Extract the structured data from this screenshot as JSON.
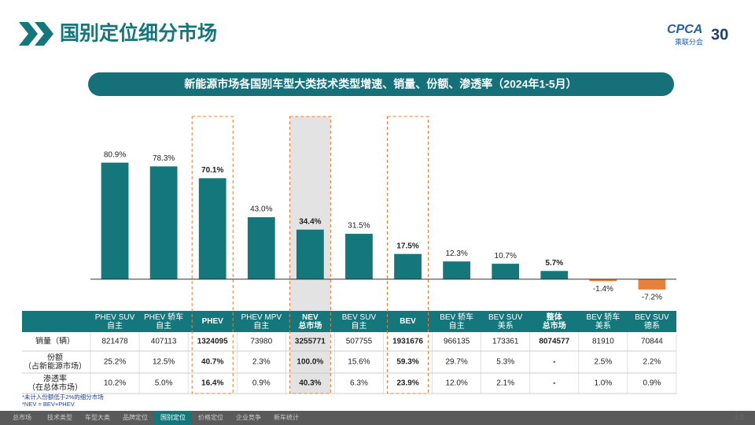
{
  "header": {
    "title": "国别定位细分市场",
    "logo": "CPCA",
    "logo_sub": "乘联分会",
    "anniversary": "30"
  },
  "chart_data": {
    "type": "bar",
    "title": "新能源市场各国别车型大类技术类型增速、销量、份额、渗透率（2024年1-5月）",
    "categories": [
      "PHEV SUV\n自主",
      "PHEV 轿车\n自主",
      "PHEV",
      "PHEV MPV\n自主",
      "NEV\n总市场",
      "BEV SUV\n自主",
      "BEV",
      "BEV 轿车\n自主",
      "BEV SUV\n美系",
      "整体\n总市场",
      "BEV 轿车\n美系",
      "BEV SUV\n德系"
    ],
    "values": [
      80.9,
      78.3,
      70.1,
      43.0,
      34.4,
      31.5,
      17.5,
      12.3,
      10.7,
      5.7,
      -1.4,
      -7.2
    ],
    "value_labels": [
      "80.9%",
      "78.3%",
      "70.1%",
      "43.0%",
      "34.4%",
      "31.5%",
      "17.5%",
      "12.3%",
      "10.7%",
      "5.7%",
      "-1.4%",
      "-7.2%"
    ],
    "colors": [
      "#14777c",
      "#14777c",
      "#14777c",
      "#14777c",
      "#14777c",
      "#14777c",
      "#14777c",
      "#14777c",
      "#14777c",
      "#14777c",
      "#e8803a",
      "#e8803a"
    ],
    "ylim": [
      -10,
      90
    ]
  },
  "table": {
    "rows": [
      {
        "label": "销量（辆）",
        "cells": [
          "821478",
          "407113",
          "1324095",
          "73980",
          "3255771",
          "507755",
          "1931676",
          "966135",
          "173361",
          "8074577",
          "81910",
          "70844"
        ]
      },
      {
        "label": "份额\n（占新能源市场）",
        "cells": [
          "25.2%",
          "12.5%",
          "40.7%",
          "2.3%",
          "100.0%",
          "15.6%",
          "59.3%",
          "29.7%",
          "5.3%",
          "-",
          "2.5%",
          "2.2%"
        ]
      },
      {
        "label": "渗透率\n（在总体市场）",
        "cells": [
          "10.2%",
          "5.0%",
          "16.4%",
          "0.9%",
          "40.3%",
          "6.3%",
          "23.9%",
          "12.0%",
          "2.1%",
          "-",
          "1.0%",
          "0.9%"
        ]
      }
    ]
  },
  "footnotes": [
    "*未计入份额低于2%的细分市场",
    "*NEV = BEV+PHEV"
  ],
  "nav": [
    "总市场",
    "技术类型",
    "车型大类",
    "品牌定位",
    "国别定位",
    "价格定位",
    "企业竞争",
    "新车统计"
  ],
  "page_number": "18"
}
